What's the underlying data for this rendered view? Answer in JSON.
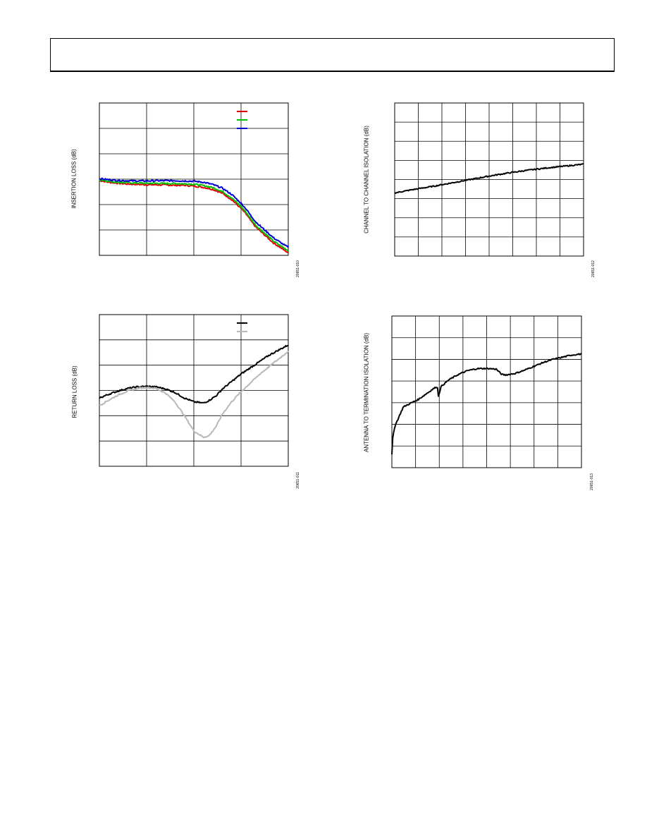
{
  "chart_data": [
    {
      "type": "line",
      "ylabel": "INSERTION LOSS (dB)",
      "figure_id": "20651-010",
      "grid": true,
      "legend_placement": "top-right",
      "x": [
        0.0,
        0.05,
        0.1,
        0.15,
        0.2,
        0.25,
        0.3,
        0.35,
        0.4,
        0.45,
        0.5,
        0.55,
        0.6,
        0.65,
        0.7,
        0.75,
        0.78,
        0.8,
        0.83,
        0.86,
        0.89,
        0.92,
        0.95,
        0.98,
        1.0
      ],
      "series": [
        {
          "color": "#e00000",
          "values": [
            2.95,
            2.88,
            2.84,
            2.81,
            2.8,
            2.78,
            2.78,
            2.77,
            2.76,
            2.76,
            2.73,
            2.68,
            2.6,
            2.45,
            2.2,
            1.85,
            1.6,
            1.38,
            1.1,
            0.9,
            0.7,
            0.5,
            0.35,
            0.2,
            0.1
          ]
        },
        {
          "color": "#00c000",
          "values": [
            2.98,
            2.92,
            2.88,
            2.86,
            2.85,
            2.84,
            2.84,
            2.83,
            2.83,
            2.82,
            2.8,
            2.75,
            2.67,
            2.52,
            2.27,
            1.92,
            1.67,
            1.45,
            1.17,
            0.97,
            0.77,
            0.57,
            0.42,
            0.28,
            0.18
          ]
        },
        {
          "color": "#0000d0",
          "values": [
            3.02,
            2.98,
            2.95,
            2.94,
            2.93,
            2.93,
            2.94,
            2.94,
            2.94,
            2.93,
            2.92,
            2.88,
            2.79,
            2.65,
            2.4,
            2.05,
            1.8,
            1.58,
            1.3,
            1.1,
            0.9,
            0.7,
            0.55,
            0.4,
            0.32
          ]
        }
      ]
    },
    {
      "type": "line",
      "ylabel": "CHANNEL TO CHANNEL ISOLATION (dB)",
      "figure_id": "20651-012",
      "grid": true,
      "x": [
        0.0,
        0.1,
        0.2,
        0.3,
        0.4,
        0.5,
        0.6,
        0.7,
        0.8,
        0.9,
        1.0
      ],
      "series": [
        {
          "color": "#000000",
          "values": [
            3.3,
            3.48,
            3.64,
            3.82,
            4.0,
            4.18,
            4.34,
            4.48,
            4.6,
            4.7,
            4.8
          ]
        }
      ]
    },
    {
      "type": "line",
      "ylabel": "RETURN LOSS (dB)",
      "figure_id": "20651-011",
      "grid": true,
      "legend_placement": "top-right",
      "x": [
        0.0,
        0.05,
        0.1,
        0.15,
        0.2,
        0.25,
        0.3,
        0.35,
        0.4,
        0.45,
        0.5,
        0.55,
        0.58,
        0.62,
        0.65,
        0.7,
        0.75,
        0.8,
        0.85,
        0.9,
        0.95,
        1.0
      ],
      "series": [
        {
          "color": "#000000",
          "values": [
            2.7,
            2.85,
            2.98,
            3.08,
            3.14,
            3.16,
            3.14,
            3.06,
            2.92,
            2.7,
            2.55,
            2.5,
            2.6,
            2.8,
            3.05,
            3.35,
            3.65,
            3.9,
            4.15,
            4.4,
            4.6,
            4.8
          ]
        },
        {
          "color": "#b8b8b8",
          "values": [
            2.4,
            2.62,
            2.82,
            2.98,
            3.08,
            3.12,
            3.08,
            2.9,
            2.55,
            2.0,
            1.4,
            1.15,
            1.2,
            1.6,
            2.05,
            2.55,
            2.95,
            3.3,
            3.65,
            3.95,
            4.25,
            4.55
          ]
        }
      ]
    },
    {
      "type": "line",
      "ylabel": "ANTENNA TO TERMINATION ISOLATION (dB)",
      "figure_id": "20651-013",
      "grid": true,
      "x": [
        0.0,
        0.005,
        0.015,
        0.03,
        0.06,
        0.1,
        0.14,
        0.18,
        0.22,
        0.24,
        0.245,
        0.26,
        0.3,
        0.35,
        0.4,
        0.45,
        0.5,
        0.55,
        0.58,
        0.6,
        0.65,
        0.7,
        0.75,
        0.8,
        0.85,
        0.9,
        0.95,
        1.0
      ],
      "series": [
        {
          "color": "#000000",
          "values": [
            0.6,
            1.4,
            1.9,
            2.2,
            2.8,
            2.98,
            3.15,
            3.4,
            3.65,
            3.75,
            3.3,
            3.75,
            4.05,
            4.3,
            4.48,
            4.57,
            4.58,
            4.55,
            4.3,
            4.28,
            4.35,
            4.5,
            4.68,
            4.86,
            5.0,
            5.1,
            5.2,
            5.25
          ]
        }
      ]
    }
  ]
}
